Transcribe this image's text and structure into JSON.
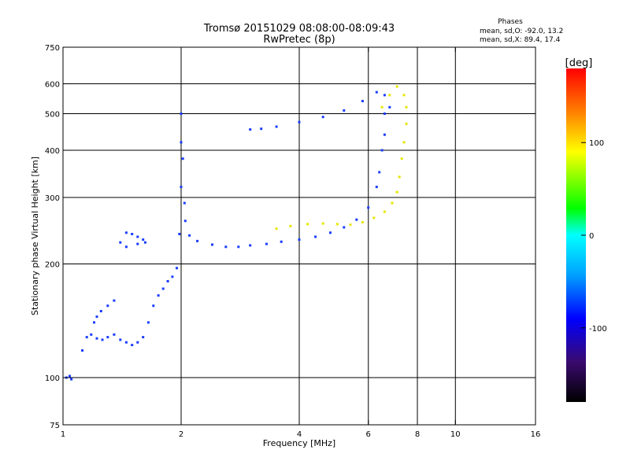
{
  "chart_data": {
    "type": "scatter",
    "title": "Tromsø 20151029 08:08:00-08:09:43",
    "subtitle": "RwPretec (8p)",
    "xlabel": "Frequency [MHz]",
    "ylabel": "Stationary phase Virtual Height [km]",
    "x_scale": "log",
    "y_scale": "log",
    "xlim": [
      1,
      16
    ],
    "ylim": [
      75,
      750
    ],
    "x_ticks": [
      1,
      2,
      4,
      6,
      8,
      10,
      16
    ],
    "x_tick_labels": [
      "1",
      "2",
      "4",
      "6",
      "8",
      "10",
      "16"
    ],
    "x_gridlines": [
      2,
      4,
      6,
      8,
      10
    ],
    "y_ticks": [
      75,
      100,
      200,
      300,
      400,
      500,
      600,
      750
    ],
    "y_tick_labels": [
      "75",
      "100",
      "200",
      "300",
      "400",
      "500",
      "600",
      "750"
    ],
    "y_gridlines": [
      100,
      200,
      300,
      400,
      500,
      600
    ],
    "grid": true,
    "stats": {
      "heading": "Phases",
      "o_line": "mean, sd,O: -92.0, 13.2",
      "x_line": "mean, sd,X:  89.4, 17.4"
    },
    "colorbar": {
      "label": "[deg]",
      "range": [
        -180,
        180
      ],
      "ticks": [
        100,
        0,
        -100
      ],
      "tick_labels": [
        "100",
        "0",
        "-100"
      ]
    },
    "traces": [
      {
        "name": "",
        "phase_deg": -92,
        "color": "#1a3dff",
        "points": [
          [
            1.02,
            100
          ],
          [
            1.04,
            101
          ],
          [
            1.05,
            99
          ],
          [
            1.12,
            118
          ],
          [
            1.15,
            128
          ],
          [
            1.18,
            130
          ],
          [
            1.22,
            127
          ],
          [
            1.26,
            126
          ],
          [
            1.3,
            128
          ],
          [
            1.35,
            130
          ],
          [
            1.4,
            126
          ],
          [
            1.45,
            124
          ],
          [
            1.5,
            122
          ],
          [
            1.55,
            124
          ],
          [
            1.6,
            128
          ],
          [
            1.65,
            140
          ],
          [
            1.7,
            155
          ],
          [
            1.75,
            165
          ],
          [
            1.8,
            172
          ],
          [
            1.85,
            180
          ],
          [
            1.9,
            185
          ],
          [
            1.95,
            195
          ],
          [
            1.98,
            240
          ],
          [
            2.0,
            320
          ],
          [
            2.0,
            420
          ],
          [
            2.0,
            500
          ],
          [
            2.02,
            380
          ],
          [
            2.04,
            290
          ],
          [
            2.05,
            260
          ],
          [
            2.1,
            238
          ],
          [
            2.2,
            230
          ],
          [
            2.4,
            225
          ],
          [
            2.6,
            222
          ],
          [
            2.8,
            222
          ],
          [
            3.0,
            224
          ],
          [
            3.3,
            226
          ],
          [
            3.6,
            229
          ],
          [
            4.0,
            232
          ],
          [
            4.4,
            236
          ],
          [
            4.8,
            242
          ],
          [
            5.2,
            250
          ],
          [
            5.6,
            262
          ],
          [
            6.0,
            282
          ],
          [
            6.3,
            320
          ],
          [
            6.5,
            400
          ],
          [
            6.6,
            500
          ],
          [
            6.6,
            560
          ],
          [
            6.3,
            570
          ],
          [
            5.8,
            540
          ],
          [
            5.2,
            510
          ],
          [
            4.6,
            490
          ],
          [
            4.0,
            475
          ],
          [
            3.5,
            462
          ],
          [
            3.2,
            456
          ],
          [
            3.0,
            454
          ],
          [
            1.45,
            242
          ],
          [
            1.5,
            240
          ],
          [
            1.55,
            236
          ],
          [
            1.6,
            232
          ],
          [
            1.62,
            228
          ],
          [
            1.55,
            226
          ],
          [
            1.45,
            222
          ],
          [
            1.4,
            228
          ],
          [
            1.35,
            160
          ],
          [
            1.3,
            155
          ],
          [
            1.25,
            150
          ],
          [
            1.22,
            145
          ],
          [
            1.2,
            140
          ],
          [
            6.4,
            350
          ],
          [
            6.6,
            440
          ],
          [
            6.8,
            520
          ]
        ]
      },
      {
        "name": "",
        "phase_deg": 89.4,
        "color": "#e6e600",
        "points": [
          [
            3.5,
            248
          ],
          [
            3.8,
            252
          ],
          [
            4.2,
            255
          ],
          [
            4.6,
            256
          ],
          [
            5.0,
            255
          ],
          [
            5.4,
            254
          ],
          [
            5.8,
            258
          ],
          [
            6.2,
            265
          ],
          [
            6.6,
            275
          ],
          [
            6.9,
            290
          ],
          [
            7.1,
            310
          ],
          [
            7.2,
            340
          ],
          [
            7.3,
            380
          ],
          [
            7.4,
            420
          ],
          [
            7.5,
            470
          ],
          [
            7.5,
            520
          ],
          [
            7.4,
            560
          ],
          [
            7.1,
            590
          ],
          [
            6.8,
            560
          ],
          [
            6.5,
            520
          ]
        ]
      }
    ]
  }
}
